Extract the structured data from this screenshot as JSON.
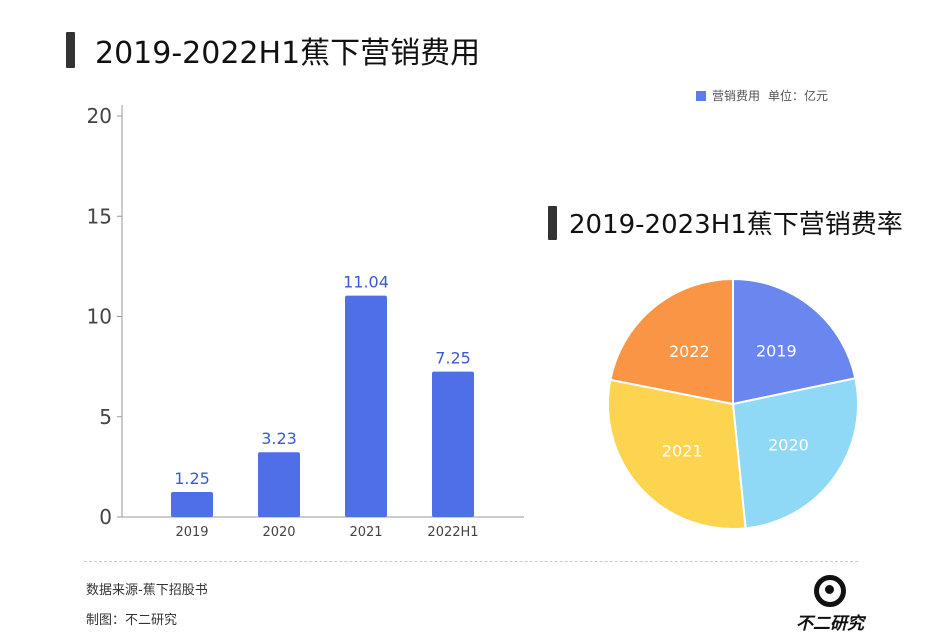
{
  "chart_data": [
    {
      "type": "bar",
      "title": "2019-2022H1蕉下营销费用",
      "categories": [
        "2019",
        "2020",
        "2021",
        "2022H1"
      ],
      "series": [
        {
          "name": "营销费用",
          "values": [
            1.25,
            3.23,
            11.04,
            7.25
          ],
          "labels": [
            "1.25",
            "3.23",
            "11.04",
            "7.25"
          ]
        }
      ],
      "unit": "单位：亿元",
      "ylim": [
        0,
        20
      ],
      "yticks": [
        "0",
        "5",
        "10",
        "15",
        "20"
      ],
      "xlabel": "",
      "ylabel": "",
      "legend": "top-right",
      "colors": {
        "bar": "#4f6fe8",
        "label": "#3a5bd0"
      }
    },
    {
      "type": "pie",
      "title": "2019-2023H1蕉下营销费率",
      "categories": [
        "2019",
        "2020",
        "2021",
        "2022"
      ],
      "values": [
        21.7,
        26.7,
        29.7,
        21.9
      ],
      "colors": [
        "#6a86ef",
        "#8fd9f6",
        "#fdd44f",
        "#f99545"
      ]
    }
  ],
  "footer": {
    "source": "数据来源-蕉下招股书",
    "maker": "制图：不二研究",
    "logo_text": "不二研究"
  }
}
